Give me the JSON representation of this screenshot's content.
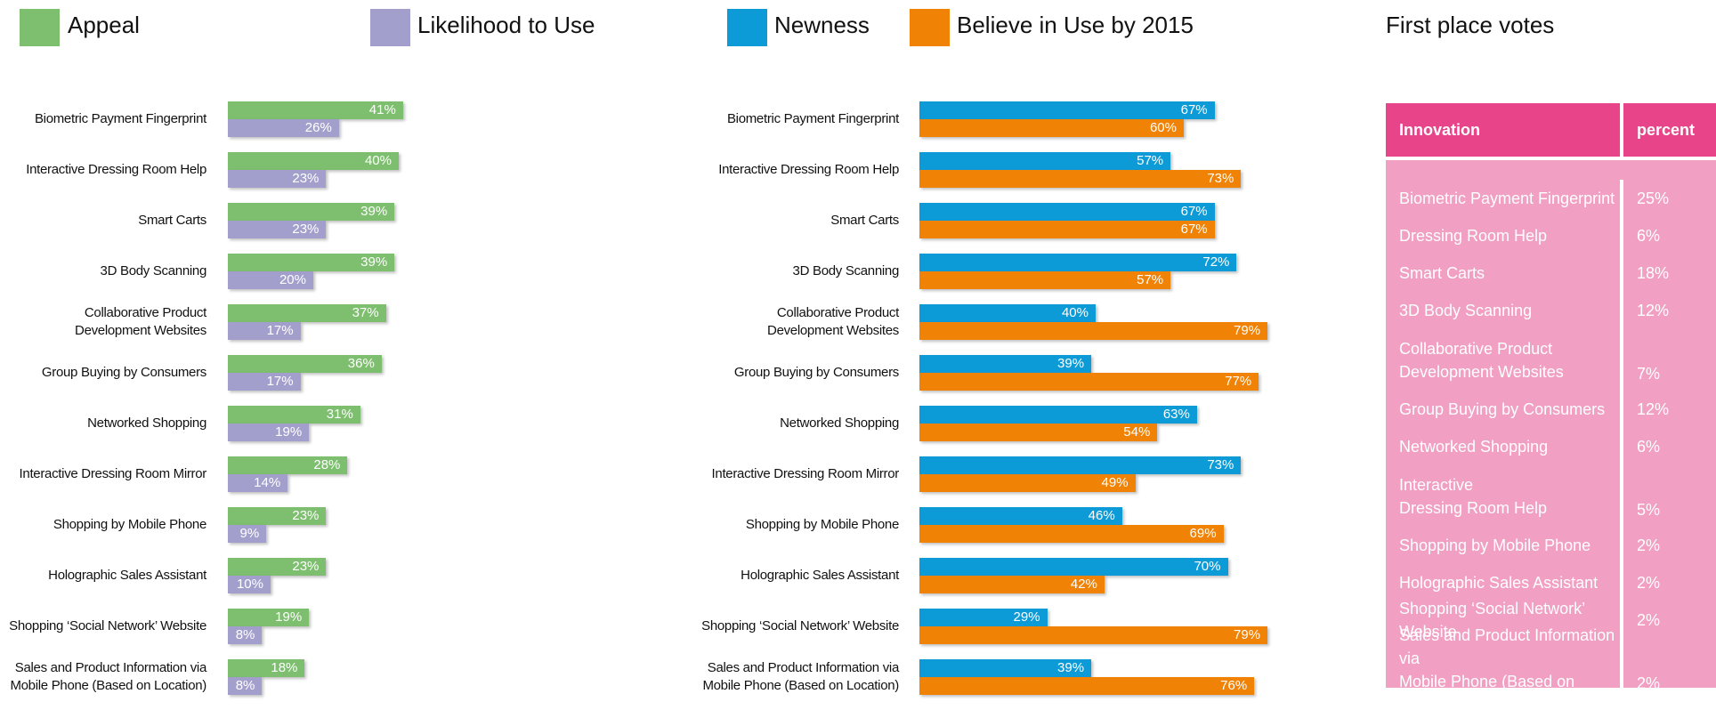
{
  "legend_title": "First place votes",
  "chart_data": [
    {
      "type": "bar",
      "orientation": "horizontal",
      "categories": [
        "Biometric Payment Fingerprint",
        "Interactive Dressing Room Help",
        "Smart Carts",
        "3D Body Scanning",
        "Collaborative Product\nDevelopment Websites",
        "Group Buying by Consumers",
        "Networked Shopping",
        "Interactive Dressing Room Mirror",
        "Shopping by Mobile Phone",
        "Holographic Sales Assistant",
        "Shopping ‘Social Network’ Website",
        "Sales and Product Information via\nMobile Phone (Based on Location)"
      ],
      "series": [
        {
          "name": "Appeal",
          "color": "#7dbf6e",
          "values": [
            41,
            40,
            39,
            39,
            37,
            36,
            31,
            28,
            23,
            23,
            19,
            18
          ],
          "value_labels": [
            "41%",
            "40%",
            "39%",
            "39%",
            "37%",
            "36%",
            "31%",
            "28%",
            "23%",
            "23%",
            "19%",
            "18%"
          ]
        },
        {
          "name": "Likelihood to Use",
          "color": "#a39fcc",
          "values": [
            26,
            23,
            23,
            20,
            17,
            17,
            19,
            14,
            9,
            10,
            8,
            8
          ],
          "value_labels": [
            "26%",
            "23%",
            "23%",
            "20%",
            "17%",
            "17%",
            "19%",
            "14%",
            "9%",
            "10%",
            "8%",
            "8%"
          ]
        }
      ]
    },
    {
      "type": "bar",
      "orientation": "horizontal",
      "categories": [
        "Biometric Payment Fingerprint",
        "Interactive Dressing Room Help",
        "Smart Carts",
        "3D Body Scanning",
        "Collaborative Product\nDevelopment Websites",
        "Group Buying by Consumers",
        "Networked Shopping",
        "Interactive Dressing Room Mirror",
        "Shopping by Mobile Phone",
        "Holographic Sales Assistant",
        "Shopping ‘Social Network’ Website",
        "Sales and Product Information via\nMobile Phone (Based on Location)"
      ],
      "series": [
        {
          "name": "Newness",
          "color": "#0d9bd8",
          "values": [
            67,
            57,
            67,
            72,
            40,
            39,
            63,
            73,
            46,
            70,
            29,
            39
          ],
          "value_labels": [
            "67%",
            "57%",
            "67%",
            "72%",
            "40%",
            "39%",
            "63%",
            "73%",
            "46%",
            "70%",
            "29%",
            "39%"
          ]
        },
        {
          "name": "Believe in Use by 2015",
          "color": "#f08205",
          "values": [
            60,
            73,
            67,
            57,
            79,
            77,
            54,
            49,
            69,
            42,
            79,
            76
          ],
          "value_labels": [
            "60%",
            "73%",
            "67%",
            "57%",
            "79%",
            "77%",
            "54%",
            "49%",
            "69%",
            "42%",
            "79%",
            "76%"
          ]
        }
      ]
    }
  ],
  "table": {
    "header": [
      "Innovation",
      "percent"
    ],
    "rows": [
      [
        "Biometric Payment Fingerprint",
        "25%"
      ],
      [
        "Dressing Room Help",
        "6%"
      ],
      [
        "Smart Carts",
        "18%"
      ],
      [
        "3D Body Scanning",
        "12%"
      ],
      [
        "Collaborative Product\nDevelopment Websites",
        "7%"
      ],
      [
        "Group Buying by Consumers",
        "12%"
      ],
      [
        "Networked Shopping",
        "6%"
      ],
      [
        "Interactive\nDressing Room Help",
        "5%"
      ],
      [
        "Shopping by Mobile Phone",
        "2%"
      ],
      [
        "Holographic Sales Assistant",
        "2%"
      ],
      [
        "Shopping ‘Social Network’ Website",
        "2%"
      ],
      [
        "Sales and Product Information via\nMobile Phone (Based on Location)",
        "2%"
      ]
    ]
  }
}
